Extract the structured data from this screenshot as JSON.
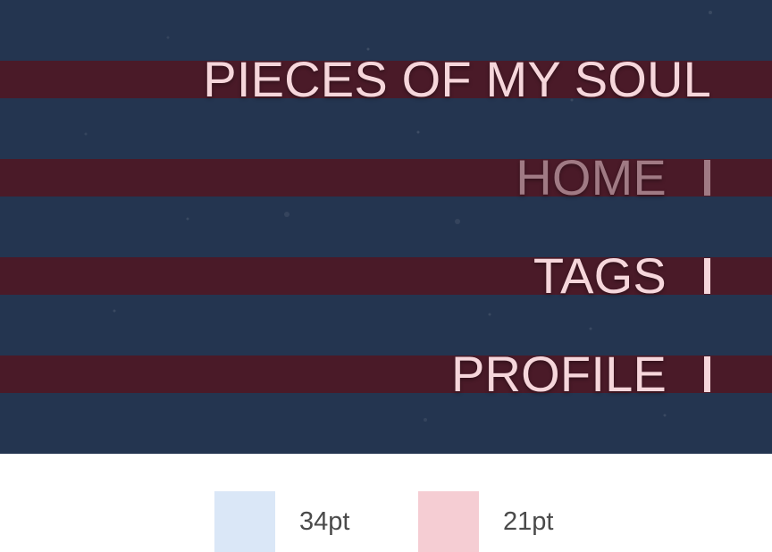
{
  "header": {
    "site_title": "PIECES OF MY SOUL"
  },
  "nav": {
    "items": [
      {
        "label": "HOME",
        "active": true
      },
      {
        "label": "TAGS",
        "active": false
      },
      {
        "label": "PROFILE",
        "active": false
      }
    ]
  },
  "legend": {
    "items": [
      {
        "label": "34pt",
        "color": "#dae7f7"
      },
      {
        "label": "21pt",
        "color": "#f5cdd3"
      }
    ]
  },
  "colors": {
    "background": "#243550",
    "band": "#4a1a28",
    "text": "#f6d6db",
    "active_text": "#a07a84"
  }
}
